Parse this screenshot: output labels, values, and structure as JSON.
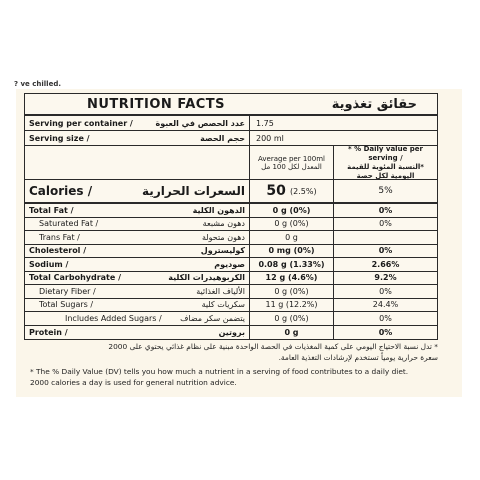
{
  "top_note": "? ve chilled.",
  "title": {
    "en": "NUTRITION FACTS",
    "ar": "حقائق تغذوية"
  },
  "serving_container": {
    "en": "Serving per container /",
    "ar": "عدد الحصص في العبوة",
    "value": "1.75"
  },
  "serving_size": {
    "en": "Serving size /",
    "ar": "حجم الحصة",
    "value": "200 ml"
  },
  "header": {
    "avg_en": "Average per 100ml",
    "avg_ar": "المعدل لكل 100 مل",
    "dv_en": "* % Daily value per serving /",
    "dv_ar": "*النسبة المئوية للقيمة اليومية لكل حصة"
  },
  "calories": {
    "en": "Calories /",
    "ar": "السعرات الحرارية",
    "value": "50",
    "pct": "(2.5%)",
    "dv": "5%"
  },
  "rows": [
    {
      "en": "Total Fat /",
      "ar": "الدهون الكلية",
      "value": "0 g (0%)",
      "dv": "0%",
      "bold": true,
      "indent": 0
    },
    {
      "en": "Saturated Fat /",
      "ar": "دهون مشبعة",
      "value": "0 g (0%)",
      "dv": "0%",
      "bold": false,
      "indent": 1
    },
    {
      "en": "Trans Fat /",
      "ar": "دهون متحولة",
      "value": "0 g",
      "dv": "",
      "bold": false,
      "indent": 1
    },
    {
      "en": "Cholesterol /",
      "ar": "كوليسترول",
      "value": "0 mg (0%)",
      "dv": "0%",
      "bold": true,
      "indent": 0
    },
    {
      "en": "Sodium /",
      "ar": "صوديوم",
      "value": "0.08 g (1.33%)",
      "dv": "2.66%",
      "bold": true,
      "indent": 0
    },
    {
      "en": "Total Carbohydrate /",
      "ar": "الكربوهيدرات الكلية",
      "value": "12 g (4.6%)",
      "dv": "9.2%",
      "bold": true,
      "indent": 0
    },
    {
      "en": "Dietary Fiber /",
      "ar": "الألياف الغذائية",
      "value": "0 g (0%)",
      "dv": "0%",
      "bold": false,
      "indent": 1
    },
    {
      "en": "Total Sugars /",
      "ar": "سكريات كلية",
      "value": "11 g (12.2%)",
      "dv": "24.4%",
      "bold": false,
      "indent": 1
    },
    {
      "en": "Includes Added Sugars /",
      "ar": "يتضمن سكر مضاف",
      "value": "0 g (0%)",
      "dv": "0%",
      "bold": false,
      "indent": 2
    },
    {
      "en": "Protein /",
      "ar": "بروتين",
      "value": "0 g",
      "dv": "0%",
      "bold": true,
      "indent": 0
    }
  ],
  "footer": {
    "ar_line1": "* تدل نسبة الاحتياج اليومي على كمية المغذيات في الحصة الواحدة مبنية على نظام غذائي يحتوي على 2000",
    "ar_line2": "سعرة حرارية يومياً تستخدم لإرشادات التغذية العامة.",
    "en_line1": "* The % Daily Value (DV) tells you how much a nutrient in a serving of food contributes to a daily diet.",
    "en_line2": "2000 calories a day is used for general nutrition advice."
  }
}
